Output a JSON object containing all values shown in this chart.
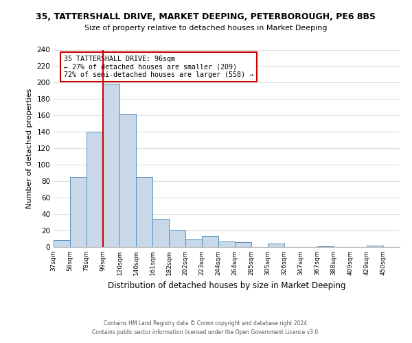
{
  "title_line1": "35, TATTERSHALL DRIVE, MARKET DEEPING, PETERBOROUGH, PE6 8BS",
  "title_line2": "Size of property relative to detached houses in Market Deeping",
  "xlabel": "Distribution of detached houses by size in Market Deeping",
  "ylabel": "Number of detached properties",
  "bin_labels": [
    "37sqm",
    "58sqm",
    "78sqm",
    "99sqm",
    "120sqm",
    "140sqm",
    "161sqm",
    "182sqm",
    "202sqm",
    "223sqm",
    "244sqm",
    "264sqm",
    "285sqm",
    "305sqm",
    "326sqm",
    "347sqm",
    "367sqm",
    "388sqm",
    "409sqm",
    "429sqm",
    "450sqm"
  ],
  "bar_heights": [
    8,
    85,
    140,
    199,
    162,
    85,
    34,
    21,
    9,
    13,
    7,
    6,
    0,
    4,
    0,
    0,
    1,
    0,
    0,
    2,
    0
  ],
  "bar_color": "#c8d8e8",
  "bar_edge_color": "#5590c0",
  "vline_x": 3,
  "vline_color": "#cc0000",
  "annotation_line1": "35 TATTERSHALL DRIVE: 96sqm",
  "annotation_line2": "← 27% of detached houses are smaller (209)",
  "annotation_line3": "72% of semi-detached houses are larger (558) →",
  "annotation_box_edge": "#cc0000",
  "ylim": [
    0,
    240
  ],
  "yticks": [
    0,
    20,
    40,
    60,
    80,
    100,
    120,
    140,
    160,
    180,
    200,
    220,
    240
  ],
  "footer_line1": "Contains HM Land Registry data © Crown copyright and database right 2024.",
  "footer_line2": "Contains public sector information licensed under the Open Government Licence v3.0.",
  "background_color": "#ffffff",
  "grid_color": "#dddddd"
}
